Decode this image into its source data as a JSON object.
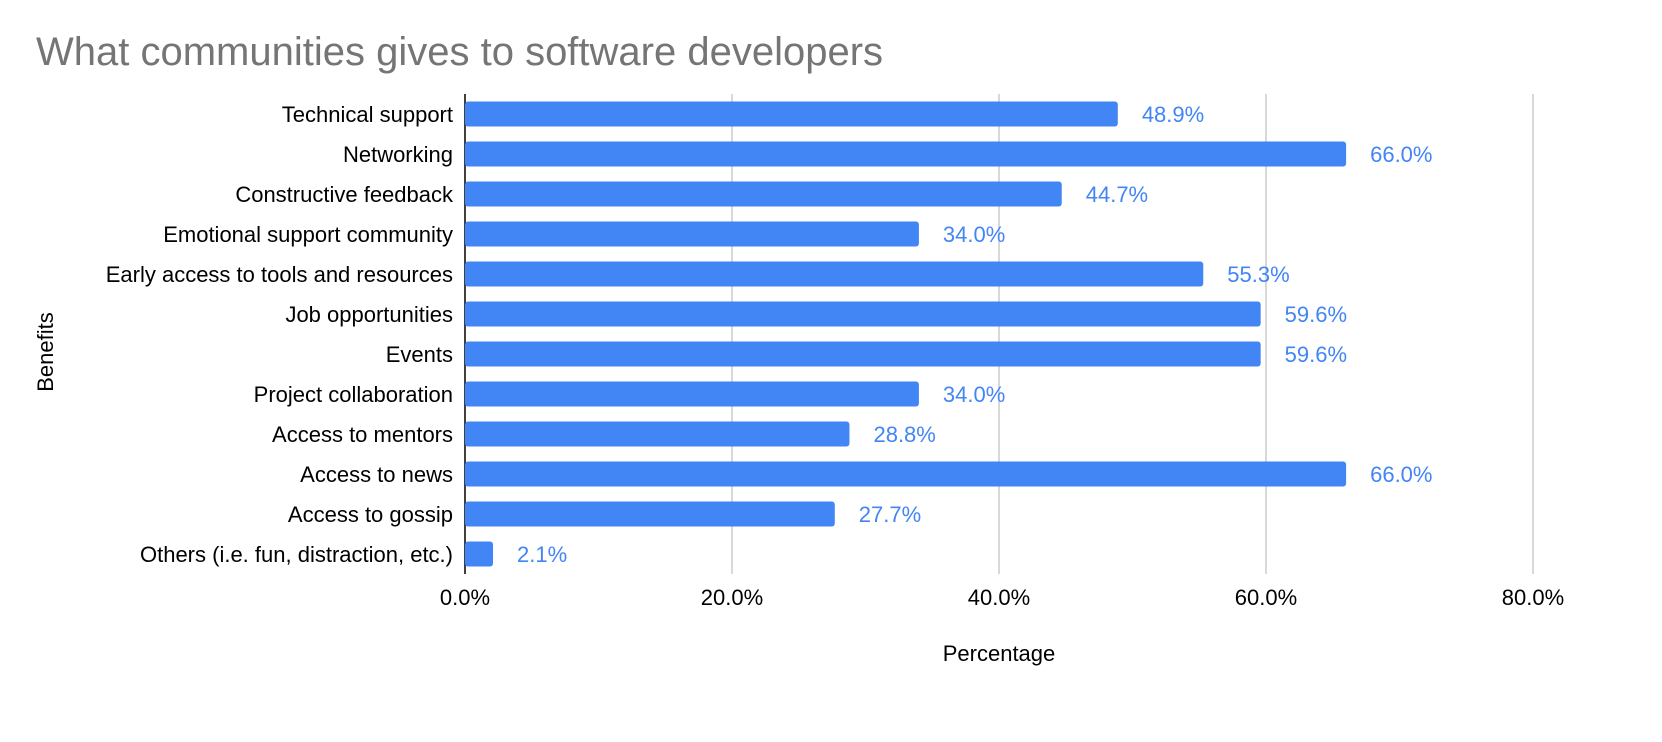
{
  "chart_data": {
    "type": "bar",
    "orientation": "horizontal",
    "title": "What communities gives to software developers",
    "xlabel": "Percentage",
    "ylabel": "Benefits",
    "categories": [
      "Technical support",
      "Networking",
      "Constructive feedback",
      "Emotional support community",
      "Early access to tools and resources",
      "Job opportunities",
      "Events",
      "Project collaboration",
      "Access to mentors",
      "Access to news",
      "Access to gossip",
      "Others (i.e. fun, distraction, etc.)"
    ],
    "values": [
      48.9,
      66.0,
      44.7,
      34.0,
      55.3,
      59.6,
      59.6,
      34.0,
      28.8,
      66.0,
      27.7,
      2.1
    ],
    "data_labels": [
      "48.9%",
      "66.0%",
      "44.7%",
      "34.0%",
      "55.3%",
      "59.6%",
      "59.6%",
      "34.0%",
      "28.8%",
      "66.0%",
      "27.7%",
      "2.1%"
    ],
    "xlim": [
      0,
      80
    ],
    "xticks": [
      0,
      20,
      40,
      60,
      80
    ],
    "xtick_labels": [
      "0.0%",
      "20.0%",
      "40.0%",
      "60.0%",
      "80.0%"
    ],
    "grid": true,
    "legend": "none",
    "bar_color": "#4285f4",
    "label_color": "#4285f4",
    "title_color": "#757575",
    "grid_color": "#cccccc",
    "axis_color": "#000000"
  }
}
